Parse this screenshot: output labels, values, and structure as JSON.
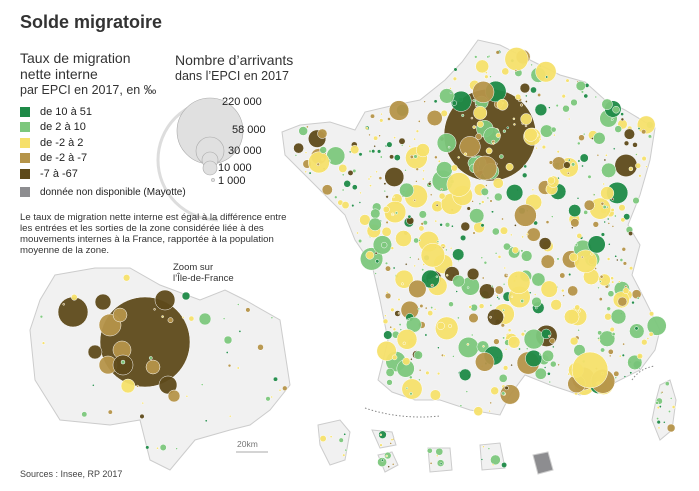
{
  "title": "Solde migratoire",
  "rate_legend": {
    "title_line1": "Taux de migration",
    "title_line2": "nette interne",
    "subtitle": "par EPCI en 2017, en ‰",
    "classes": [
      {
        "label": "de 10 à 51",
        "color": "#1e8a47"
      },
      {
        "label": "de 2 à 10",
        "color": "#7cc77c"
      },
      {
        "label": "de -2 à 2",
        "color": "#f6e06a"
      },
      {
        "label": "de -2 à -7",
        "color": "#b59449"
      },
      {
        "label": "-7 à -67",
        "color": "#5e4a1a"
      }
    ],
    "na": {
      "label": "donnée non disponible (Mayotte)",
      "color": "#8d8d90"
    }
  },
  "size_legend": {
    "title": "Nombre d’arrivants",
    "subtitle": "dans l’EPCI en 2017",
    "values": [
      "220 000",
      "58 000",
      "30 000",
      "10 000",
      "1 000"
    ]
  },
  "note": "Le taux de migration nette interne est égal à la différence entre les entrées et les sorties de la zone considérée liée à des mouvements internes à la France, rapportée à la population moyenne de la zone.",
  "inset": {
    "label_line1": "Zoom sur",
    "label_line2": "l’Île-de-France",
    "scale": "20km"
  },
  "source": "Sources : Insee, RP 2017",
  "colors": {
    "land": "#f1f1f1",
    "border": "#d8d8d8",
    "bubble_stroke": "#ffffff"
  }
}
